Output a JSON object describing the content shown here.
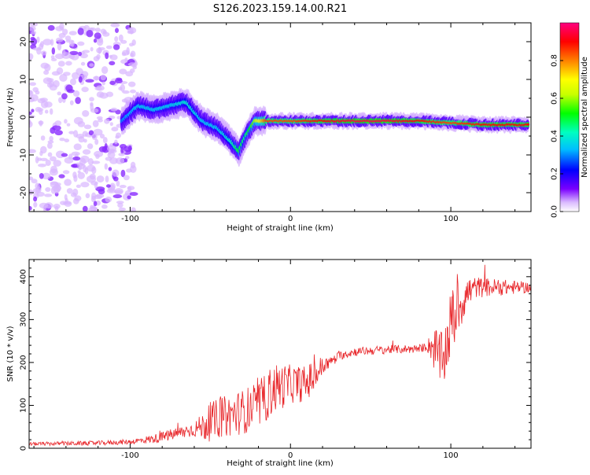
{
  "figure_title": "S126.2023.159.14.00.R21",
  "colors": {
    "snr_line": "#e8262a",
    "axis": "#000000"
  },
  "chart_data": [
    {
      "type": "heatmap",
      "xlabel": "Height of straight line (km)",
      "ylabel": "Frequency (Hz)",
      "xlim": [
        -163,
        150
      ],
      "ylim": [
        -25,
        25
      ],
      "x_ticks": [
        "-100",
        "0",
        "100"
      ],
      "x_tick_values": [
        -100,
        0,
        100
      ],
      "y_ticks": [
        "-20",
        "-10",
        "0",
        "10",
        "20"
      ],
      "y_tick_values": [
        -20,
        -10,
        0,
        10,
        20
      ],
      "colorbar": {
        "label": "Normalized spectral amplitude",
        "range": [
          0,
          1
        ],
        "ticks": [
          "0.0",
          "0.2",
          "0.4",
          "0.6",
          "0.8"
        ],
        "tick_values": [
          0,
          0.2,
          0.4,
          0.6,
          0.8
        ],
        "colormap": "rainbow (white-violet-blue-cyan-green-yellow-red-magenta)"
      },
      "ridge": {
        "x": [
          -105,
          -95,
          -85,
          -75,
          -65,
          -55,
          -45,
          -38,
          -32,
          -28,
          -22,
          -15,
          0,
          20,
          40,
          60,
          80,
          100,
          120,
          148
        ],
        "y": [
          -1,
          3,
          2,
          3,
          4,
          -1,
          -3,
          -6,
          -9,
          -5,
          -1,
          -1,
          -1,
          -1,
          -1,
          -1,
          -1,
          -1.5,
          -2,
          -2
        ],
        "peak_amplitude": [
          0.3,
          0.35,
          0.35,
          0.35,
          0.4,
          0.35,
          0.35,
          0.4,
          0.5,
          0.45,
          0.6,
          0.85,
          0.85,
          0.9,
          0.95,
          0.95,
          0.9,
          0.85,
          0.9,
          0.9
        ]
      },
      "noise_region": {
        "x_range": [
          -163,
          -105
        ],
        "y_range": [
          -25,
          25
        ],
        "amplitude": 0.1
      }
    },
    {
      "type": "line",
      "xlabel": "Height of straight line (km)",
      "ylabel": "SNR (10 * v/v)",
      "xlim": [
        -163,
        150
      ],
      "ylim": [
        0,
        440
      ],
      "x_ticks": [
        "-100",
        "0",
        "100"
      ],
      "x_tick_values": [
        -100,
        0,
        100
      ],
      "y_ticks": [
        "0",
        "100",
        "200",
        "300",
        "400"
      ],
      "y_tick_values": [
        0,
        100,
        200,
        300,
        400
      ],
      "trend": {
        "x": [
          -163,
          -120,
          -100,
          -85,
          -70,
          -55,
          -45,
          -30,
          -20,
          -10,
          0,
          10,
          20,
          30,
          40,
          60,
          80,
          88,
          95,
          100,
          105,
          110,
          115,
          125,
          150
        ],
        "y": [
          10,
          12,
          15,
          22,
          35,
          50,
          70,
          85,
          100,
          140,
          150,
          150,
          190,
          215,
          225,
          230,
          232,
          240,
          200,
          290,
          330,
          360,
          375,
          375,
          375
        ]
      },
      "noise_amplitude": {
        "x": [
          -163,
          -100,
          -60,
          -50,
          -10,
          0,
          15,
          25,
          85,
          90,
          100,
          115,
          150
        ],
        "y": [
          4,
          6,
          18,
          45,
          60,
          45,
          40,
          10,
          10,
          55,
          80,
          25,
          12
        ]
      }
    }
  ]
}
